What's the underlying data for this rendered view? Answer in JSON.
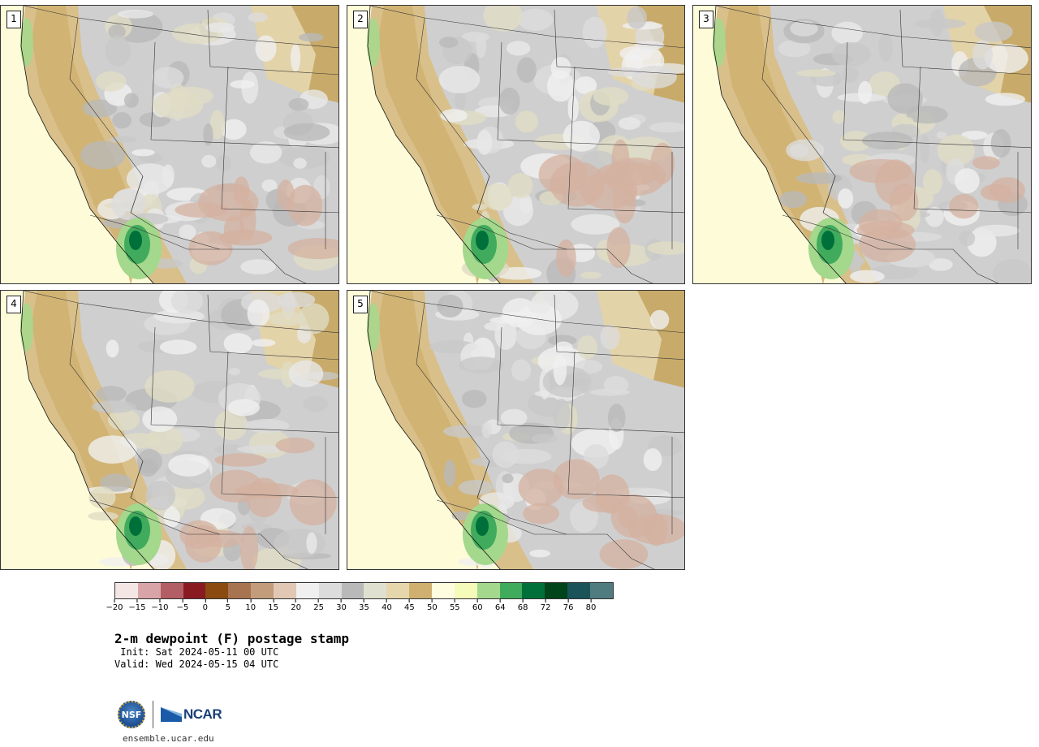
{
  "panels": [
    {
      "label": "1"
    },
    {
      "label": "2"
    },
    {
      "label": "3"
    },
    {
      "label": "4"
    },
    {
      "label": "5"
    }
  ],
  "colorbar": {
    "colors": [
      "#f5e6e6",
      "#d8a4a8",
      "#b35e64",
      "#8a1a22",
      "#8a4a10",
      "#a87450",
      "#c39c7c",
      "#e0c8b4",
      "#f0f0f0",
      "#dcdcdc",
      "#b9b9b9",
      "#e0e0d0",
      "#e6d6ab",
      "#cfb070",
      "#fffde0",
      "#f5fbb8",
      "#a4d88c",
      "#41ab5d",
      "#00703a",
      "#00441b",
      "#1a5458",
      "#507c80"
    ],
    "ticks": [
      "-20",
      "-15",
      "-10",
      "-5",
      "0",
      "5",
      "10",
      "15",
      "20",
      "25",
      "30",
      "35",
      "40",
      "45",
      "50",
      "55",
      "60",
      "64",
      "68",
      "72",
      "76",
      "80"
    ]
  },
  "title": "2-m dewpoint (F) postage stamp",
  "init": " Init: Sat 2024-05-11 00 UTC",
  "valid": "Valid: Wed 2024-05-15 04 UTC",
  "logo_nsf": "NSF",
  "logo_ncar": "NCAR",
  "url": "ensemble.ucar.edu"
}
